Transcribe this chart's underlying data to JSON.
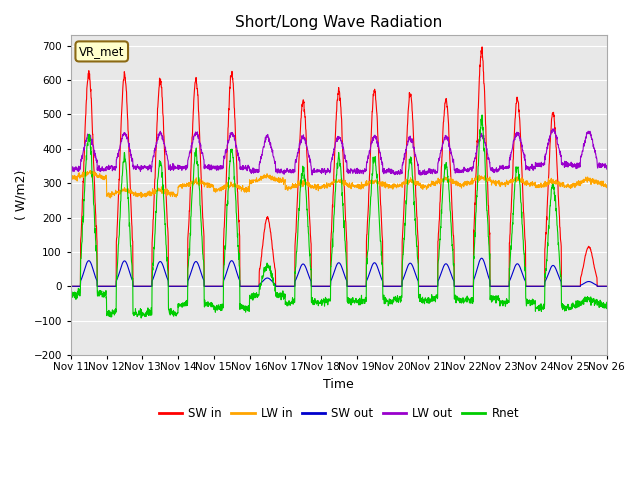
{
  "title": "Short/Long Wave Radiation",
  "xlabel": "Time",
  "ylabel": "( W/m2)",
  "ylim": [
    -200,
    730
  ],
  "yticks": [
    -200,
    -100,
    0,
    100,
    200,
    300,
    400,
    500,
    600,
    700
  ],
  "station_label": "VR_met",
  "colors": {
    "SW_in": "#ff0000",
    "LW_in": "#ffa500",
    "SW_out": "#0000cc",
    "LW_out": "#9900cc",
    "Rnet": "#00cc00"
  },
  "legend": [
    "SW in",
    "LW in",
    "SW out",
    "LW out",
    "Rnet"
  ],
  "fig_bg": "#ffffff",
  "plot_bg": "#e8e8e8",
  "grid_color": "#ffffff",
  "n_days": 15,
  "start_day": 11
}
